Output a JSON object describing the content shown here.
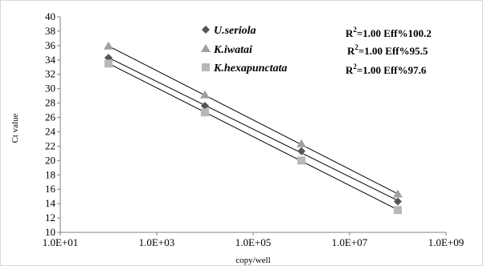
{
  "chart_data": {
    "type": "scatter",
    "title": "",
    "xlabel": "copy/well",
    "ylabel": "Ct value",
    "x_scale": "log",
    "xlim": [
      10,
      1000000000
    ],
    "ylim": [
      10,
      40
    ],
    "x_ticks": [
      "1.0E+01",
      "1.0E+03",
      "1.0E+05",
      "1.0E+07",
      "1.0E+09"
    ],
    "y_ticks": [
      "10",
      "12",
      "14",
      "16",
      "18",
      "20",
      "22",
      "24",
      "26",
      "28",
      "30",
      "32",
      "34",
      "36",
      "38",
      "40"
    ],
    "grid": false,
    "legend_position": "top-center",
    "series": [
      {
        "name": "U.seriola",
        "marker": "diamond",
        "color": "#555555",
        "x": [
          100,
          10000,
          1000000,
          100000000
        ],
        "y": [
          34.3,
          27.6,
          21.3,
          14.3
        ]
      },
      {
        "name": "K.iwatai",
        "marker": "triangle",
        "color": "#a0a0a0",
        "x": [
          100,
          10000,
          1000000,
          100000000
        ],
        "y": [
          35.9,
          29.1,
          22.3,
          15.3
        ]
      },
      {
        "name": "K.hexapunctata",
        "marker": "square",
        "color": "#b8b8b8",
        "x": [
          100,
          10000,
          1000000,
          100000000
        ],
        "y": [
          33.5,
          26.7,
          20.0,
          13.1
        ]
      }
    ],
    "annotations": [
      {
        "r2_label": "R",
        "r2_sup": "2",
        "text": "=1.00 Eff%100.2"
      },
      {
        "r2_label": "R",
        "r2_sup": "2",
        "text": "=1.00 Eff%95.5"
      },
      {
        "r2_label": "R",
        "r2_sup": "2",
        "text": "=1.00 Eff%97.6"
      }
    ]
  }
}
